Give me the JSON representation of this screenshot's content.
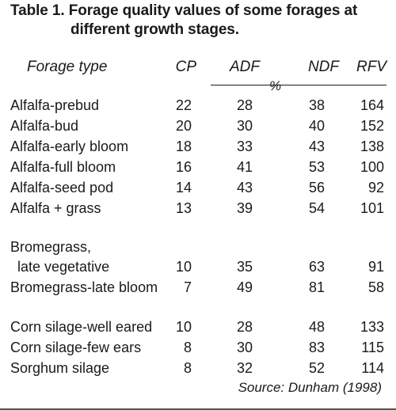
{
  "title": {
    "line1": "Table 1. Forage quality values of some forages at",
    "line2": "different growth stages."
  },
  "headers": {
    "forage": "Forage type",
    "cp": "CP",
    "adf": "ADF",
    "ndf": "NDF",
    "rfv": "RFV",
    "unit": "%"
  },
  "rows": [
    {
      "name": "Alfalfa-prebud",
      "cp": "22",
      "adf": "28",
      "ndf": "38",
      "rfv": "164"
    },
    {
      "name": "Alfalfa-bud",
      "cp": "20",
      "adf": "30",
      "ndf": "40",
      "rfv": "152"
    },
    {
      "name": "Alfalfa-early bloom",
      "cp": "18",
      "adf": "33",
      "ndf": "43",
      "rfv": "138"
    },
    {
      "name": "Alfalfa-full bloom",
      "cp": "16",
      "adf": "41",
      "ndf": "53",
      "rfv": "100"
    },
    {
      "name": "Alfalfa-seed pod",
      "cp": "14",
      "adf": "43",
      "ndf": "56",
      "rfv": "92"
    },
    {
      "name": "Alfalfa + grass",
      "cp": "13",
      "adf": "39",
      "ndf": "54",
      "rfv": "101"
    },
    {
      "name": "Bromegrass,",
      "cp": "",
      "adf": "",
      "ndf": "",
      "rfv": ""
    },
    {
      "name": "late vegetative",
      "cp": "10",
      "adf": "35",
      "ndf": "63",
      "rfv": "91"
    },
    {
      "name": "Bromegrass-late bloom",
      "cp": "7",
      "adf": "49",
      "ndf": "81",
      "rfv": "58"
    },
    {
      "name": "Corn silage-well eared",
      "cp": "10",
      "adf": "28",
      "ndf": "48",
      "rfv": "133"
    },
    {
      "name": "Corn silage-few ears",
      "cp": "8",
      "adf": "30",
      "ndf": "83",
      "rfv": "115"
    },
    {
      "name": "Sorghum silage",
      "cp": "8",
      "adf": "32",
      "ndf": "52",
      "rfv": "114"
    }
  ],
  "source": "Source: Dunham (1998)"
}
